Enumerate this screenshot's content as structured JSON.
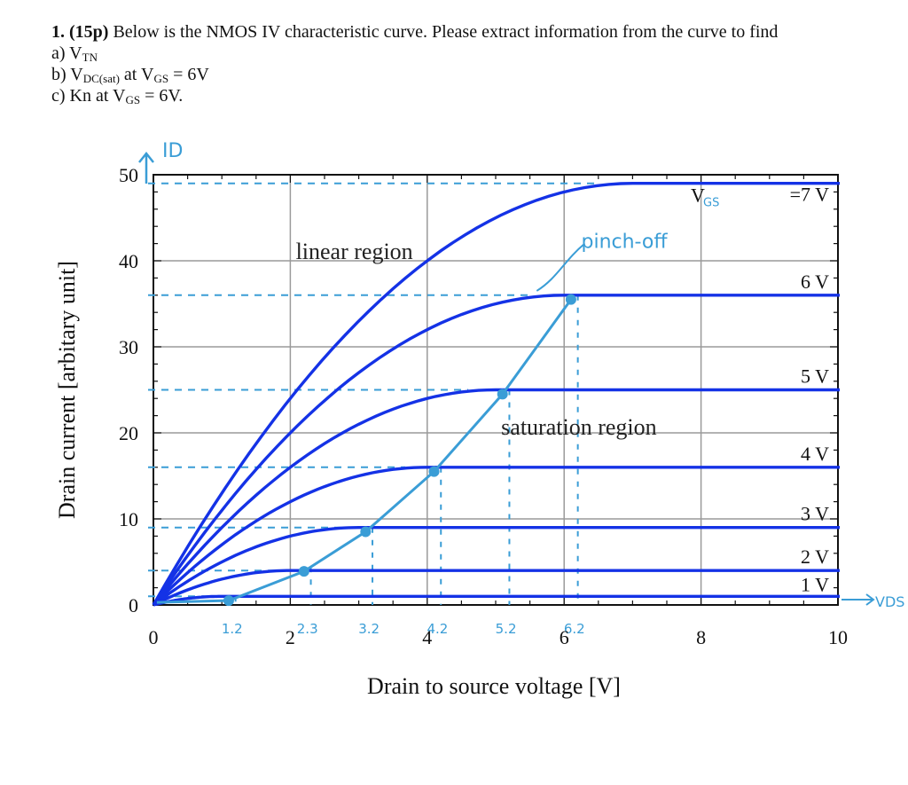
{
  "question": {
    "number": "1.",
    "points": "(15p)",
    "text": "Below is the NMOS IV characteristic curve. Please extract information from the curve to find",
    "a_prefix": "a) V",
    "a_sub": "TN",
    "b_prefix": "b) V",
    "b_sub": "DC(sat)",
    "b_mid": " at V",
    "b_sub2": "GS",
    "b_suffix": " = 6V",
    "c_prefix": "c) Kn at V",
    "c_sub": "GS",
    "c_suffix": " = 6V."
  },
  "chart_data": {
    "type": "line",
    "xlabel": "Drain to source voltage [V]",
    "ylabel": "Drain current [arbitary unit]",
    "xlim": [
      0,
      10
    ],
    "ylim": [
      0,
      50
    ],
    "xticks": [
      "0",
      "2",
      "4",
      "6",
      "8",
      "10"
    ],
    "yticks": [
      "0",
      "10",
      "20",
      "30",
      "40",
      "50"
    ],
    "grid": true,
    "series": [
      {
        "name": "1 V",
        "label": "1 V",
        "vsat": 1.0,
        "isat": 1
      },
      {
        "name": "2 V",
        "label": "2 V",
        "vsat": 2.0,
        "isat": 4
      },
      {
        "name": "3 V",
        "label": "3 V",
        "vsat": 3.0,
        "isat": 9
      },
      {
        "name": "4 V",
        "label": "4 V",
        "vsat": 4.0,
        "isat": 16
      },
      {
        "name": "5 V",
        "label": "5 V",
        "vsat": 5.0,
        "isat": 25
      },
      {
        "name": "6 V",
        "label": "6 V",
        "vsat": 6.0,
        "isat": 36
      },
      {
        "name": "=7 V",
        "label": "=7 V",
        "vsat": 7.0,
        "isat": 49
      }
    ],
    "annotations": {
      "linear": "linear region",
      "saturation": "saturation region",
      "vgs_prefix": "V",
      "vgs_sub": "GS"
    },
    "handwritten": {
      "id_label": "ID",
      "pinch_off": "pinch-off",
      "vds_label": "VDS",
      "x_marks": [
        {
          "x": 1.2,
          "text": "1.2"
        },
        {
          "x": 2.3,
          "text": "2.3"
        },
        {
          "x": 3.2,
          "text": "3.2"
        },
        {
          "x": 4.2,
          "text": "4.2"
        },
        {
          "x": 5.2,
          "text": "5.2"
        },
        {
          "x": 6.2,
          "text": "6.2"
        }
      ]
    },
    "colors": {
      "curve": "#1432e6",
      "grid": "#9a9a9a",
      "ink": "#3a9dd6"
    }
  }
}
